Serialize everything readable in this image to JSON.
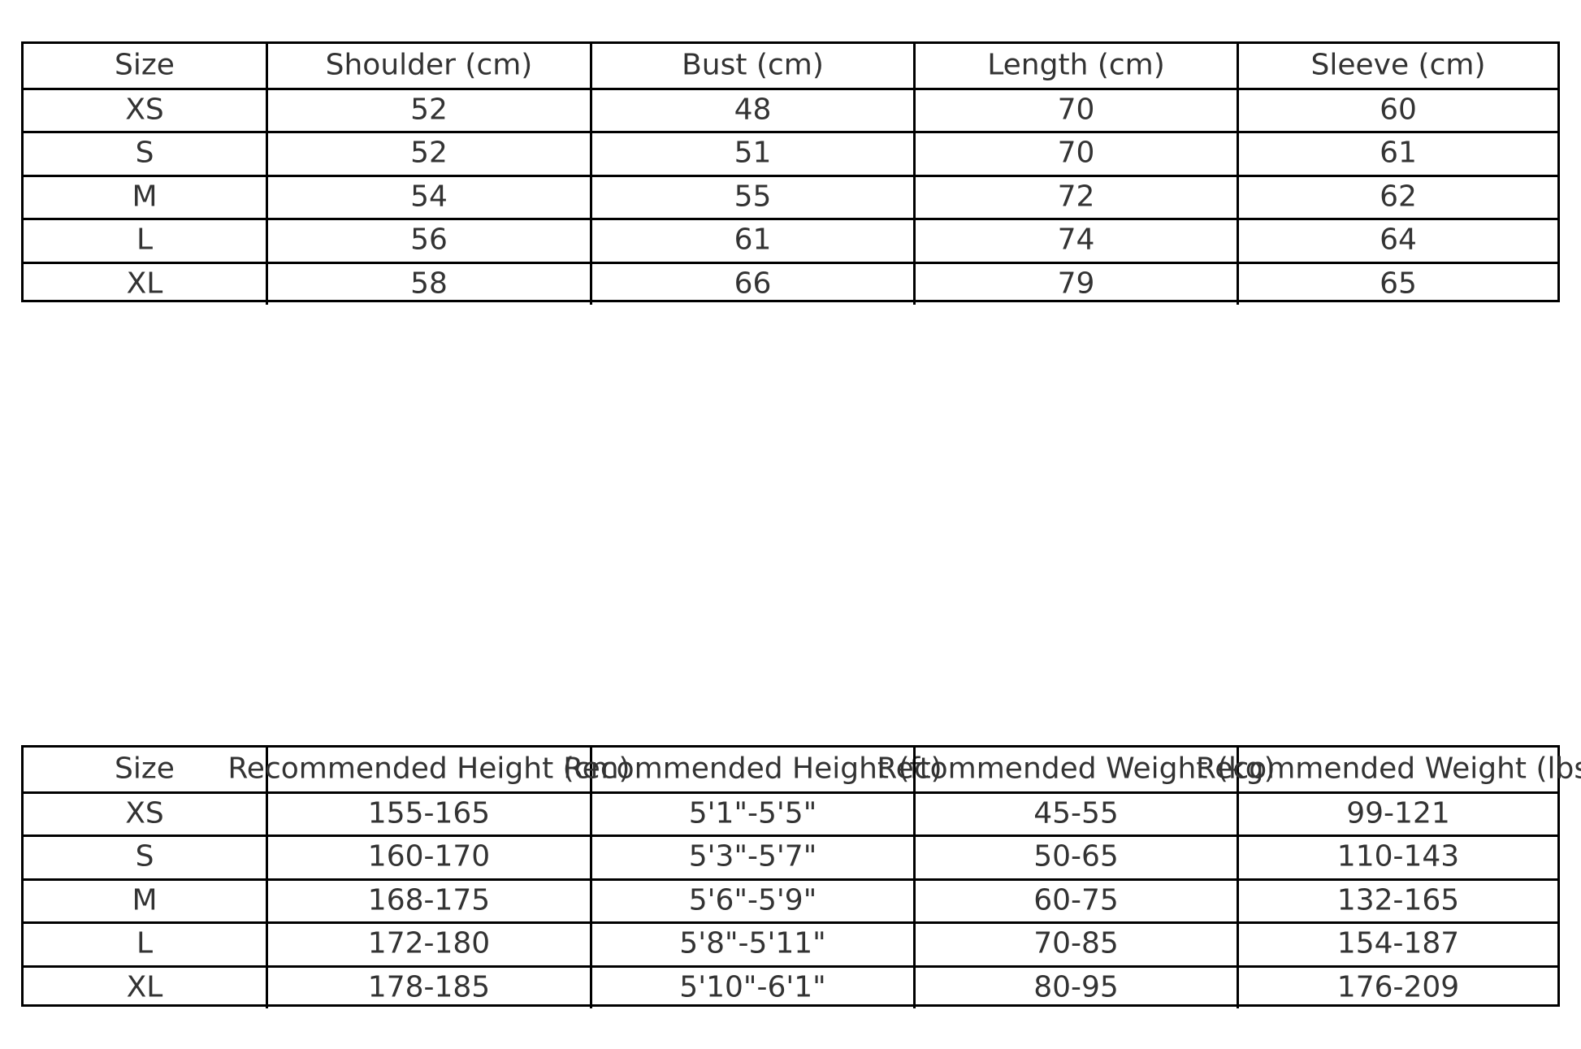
{
  "measurements_table": {
    "headers": [
      "Size",
      "Shoulder (cm)",
      "Bust (cm)",
      "Length (cm)",
      "Sleeve (cm)"
    ],
    "rows": [
      [
        "XS",
        "52",
        "48",
        "70",
        "60"
      ],
      [
        "S",
        "52",
        "51",
        "70",
        "61"
      ],
      [
        "M",
        "54",
        "55",
        "72",
        "62"
      ],
      [
        "L",
        "56",
        "61",
        "74",
        "64"
      ],
      [
        "XL",
        "58",
        "66",
        "79",
        "65"
      ]
    ]
  },
  "recommendation_table": {
    "headers": [
      "Size",
      "Recommended Height (cm)",
      "Recommended Height (ft)",
      "Recommended Weight (kg)",
      "Recommended Weight (lbs)"
    ],
    "rows": [
      [
        "XS",
        "155-165",
        "5'1\"-5'5\"",
        "45-55",
        "99-121"
      ],
      [
        "S",
        "160-170",
        "5'3\"-5'7\"",
        "50-65",
        "110-143"
      ],
      [
        "M",
        "168-175",
        "5'6\"-5'9\"",
        "60-75",
        "132-165"
      ],
      [
        "L",
        "172-180",
        "5'8\"-5'11\"",
        "70-85",
        "154-187"
      ],
      [
        "XL",
        "178-185",
        "5'10\"-6'1\"",
        "80-95",
        "176-209"
      ]
    ]
  }
}
